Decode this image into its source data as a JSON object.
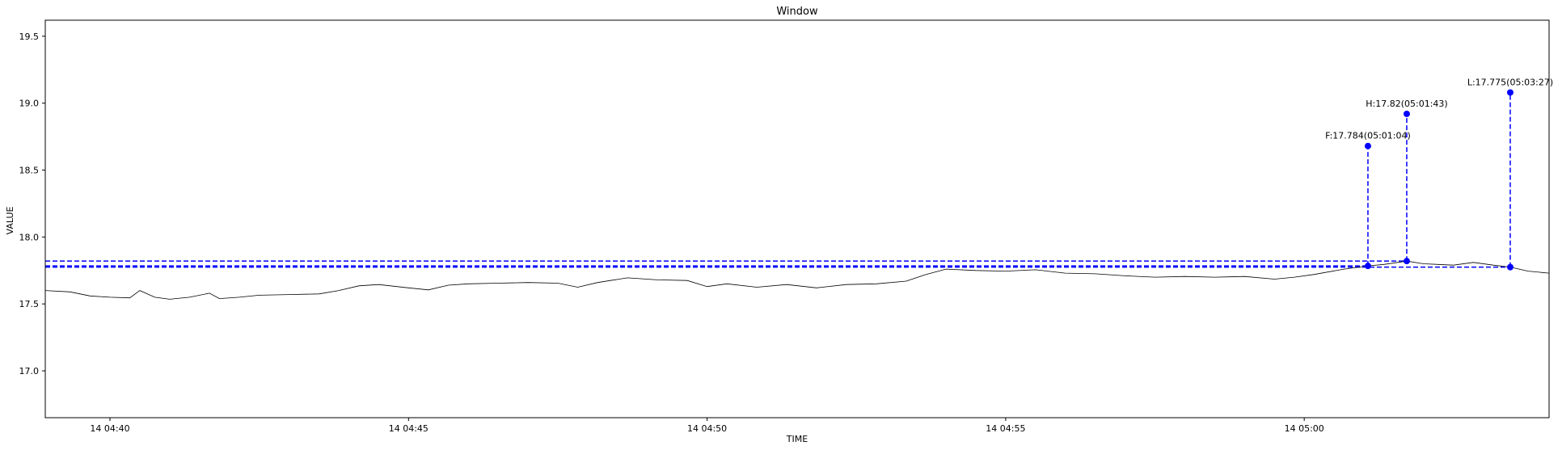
{
  "chart_data": {
    "type": "line",
    "title": "Window",
    "xlabel": "TIME",
    "ylabel": "VALUE",
    "xlim": [
      "14 04:38:55",
      "14 05:04:06"
    ],
    "ylim": [
      16.65,
      19.62
    ],
    "yticks": [
      17.0,
      17.5,
      18.0,
      18.5,
      19.0,
      19.5
    ],
    "ytick_labels": [
      "17.0",
      "17.5",
      "18.0",
      "18.5",
      "19.0",
      "19.5"
    ],
    "xticks": [
      "14 04:40:00",
      "14 04:45:00",
      "14 04:50:00",
      "14 04:55:00",
      "14 05:00:00"
    ],
    "xtick_labels": [
      "14 04:40",
      "14 04:45",
      "14 04:50",
      "14 04:55",
      "14 05:00"
    ],
    "grid": false,
    "series": [
      {
        "color": "#000000",
        "points": [
          [
            "04:38:55",
            17.6
          ],
          [
            "04:39:20",
            17.59
          ],
          [
            "04:39:40",
            17.56
          ],
          [
            "04:40:00",
            17.55
          ],
          [
            "04:40:20",
            17.545
          ],
          [
            "04:40:30",
            17.6
          ],
          [
            "04:40:45",
            17.55
          ],
          [
            "04:41:00",
            17.535
          ],
          [
            "04:41:20",
            17.55
          ],
          [
            "04:41:40",
            17.58
          ],
          [
            "04:41:50",
            17.54
          ],
          [
            "04:42:10",
            17.55
          ],
          [
            "04:42:30",
            17.565
          ],
          [
            "04:43:00",
            17.57
          ],
          [
            "04:43:30",
            17.575
          ],
          [
            "04:43:50",
            17.6
          ],
          [
            "04:44:10",
            17.635
          ],
          [
            "04:44:30",
            17.645
          ],
          [
            "04:45:00",
            17.62
          ],
          [
            "04:45:20",
            17.605
          ],
          [
            "04:45:40",
            17.64
          ],
          [
            "04:46:00",
            17.65
          ],
          [
            "04:46:30",
            17.655
          ],
          [
            "04:47:00",
            17.66
          ],
          [
            "04:47:30",
            17.655
          ],
          [
            "04:47:50",
            17.625
          ],
          [
            "04:48:10",
            17.66
          ],
          [
            "04:48:40",
            17.695
          ],
          [
            "04:49:10",
            17.68
          ],
          [
            "04:49:40",
            17.675
          ],
          [
            "04:50:00",
            17.63
          ],
          [
            "04:50:20",
            17.65
          ],
          [
            "04:50:50",
            17.625
          ],
          [
            "04:51:20",
            17.645
          ],
          [
            "04:51:50",
            17.62
          ],
          [
            "04:52:20",
            17.645
          ],
          [
            "04:52:50",
            17.65
          ],
          [
            "04:53:20",
            17.67
          ],
          [
            "04:53:40",
            17.72
          ],
          [
            "04:54:00",
            17.76
          ],
          [
            "04:54:30",
            17.75
          ],
          [
            "04:55:00",
            17.745
          ],
          [
            "04:55:30",
            17.755
          ],
          [
            "04:56:00",
            17.73
          ],
          [
            "04:56:30",
            17.725
          ],
          [
            "04:57:00",
            17.71
          ],
          [
            "04:57:30",
            17.7
          ],
          [
            "04:58:00",
            17.705
          ],
          [
            "04:58:30",
            17.7
          ],
          [
            "04:59:00",
            17.705
          ],
          [
            "04:59:30",
            17.685
          ],
          [
            "04:59:50",
            17.7
          ],
          [
            "05:00:10",
            17.72
          ],
          [
            "05:00:40",
            17.76
          ],
          [
            "05:01:04",
            17.784
          ],
          [
            "05:01:20",
            17.795
          ],
          [
            "05:01:43",
            17.82
          ],
          [
            "05:02:00",
            17.8
          ],
          [
            "05:02:30",
            17.79
          ],
          [
            "05:02:50",
            17.81
          ],
          [
            "05:03:10",
            17.79
          ],
          [
            "05:03:27",
            17.775
          ],
          [
            "05:03:45",
            17.745
          ],
          [
            "05:04:06",
            17.73
          ]
        ]
      }
    ],
    "markers": [
      {
        "label": "F:17.784(05:01:04)",
        "time": "05:01:04",
        "value": 17.784,
        "marker_top": 18.68,
        "color": "#0000ff"
      },
      {
        "label": "H:17.82(05:01:43)",
        "time": "05:01:43",
        "value": 17.82,
        "marker_top": 18.92,
        "color": "#0000ff"
      },
      {
        "label": "L:17.775(05:03:27)",
        "time": "05:03:27",
        "value": 17.775,
        "marker_top": 19.08,
        "color": "#0000ff"
      }
    ]
  }
}
